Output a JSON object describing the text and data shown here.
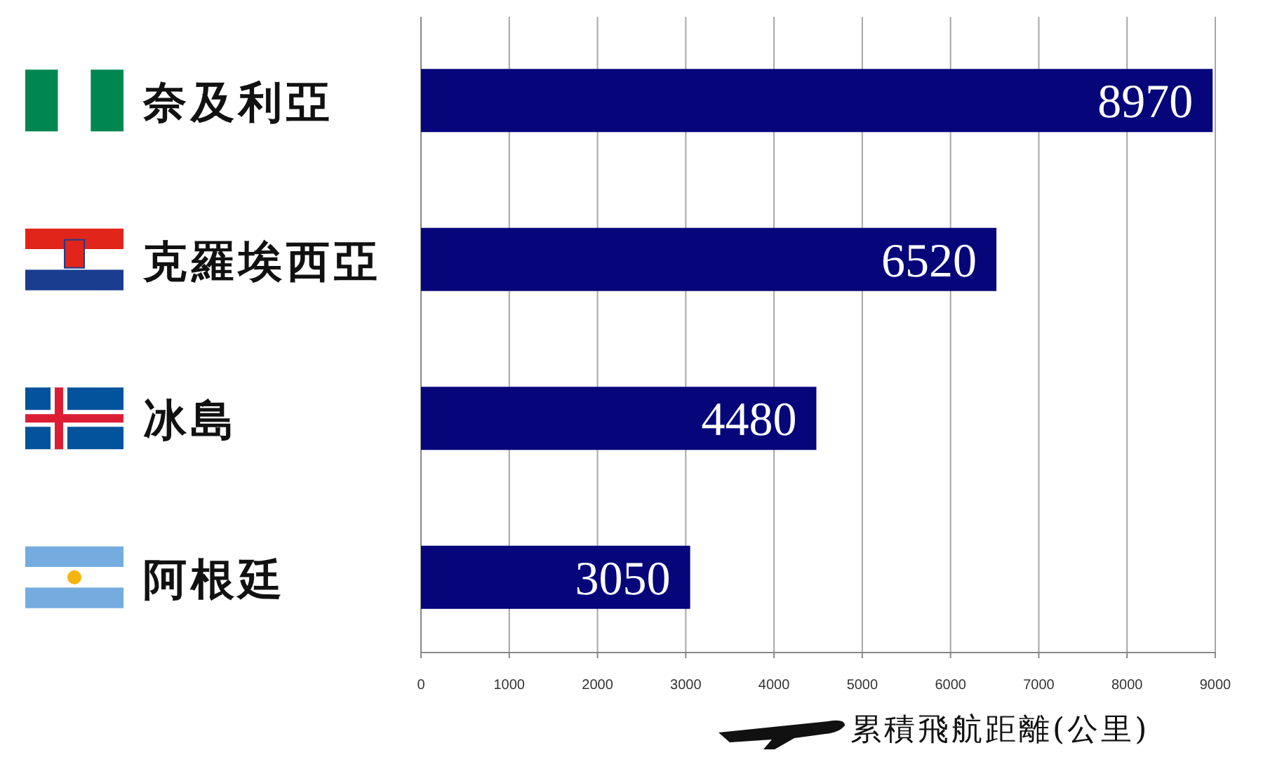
{
  "chart_data": {
    "type": "bar",
    "orientation": "horizontal",
    "categories": [
      "奈及利亞",
      "克羅埃西亞",
      "冰島",
      "阿根廷"
    ],
    "values": [
      8970,
      6520,
      4480,
      3050
    ],
    "color": "#06067a",
    "xlim": [
      0,
      9000
    ],
    "xticks": [
      0,
      1000,
      2000,
      3000,
      4000,
      5000,
      6000,
      7000,
      8000,
      9000
    ],
    "grid": "x",
    "data_labels": true,
    "xlabel": "累積飛航距離(公里)"
  }
}
